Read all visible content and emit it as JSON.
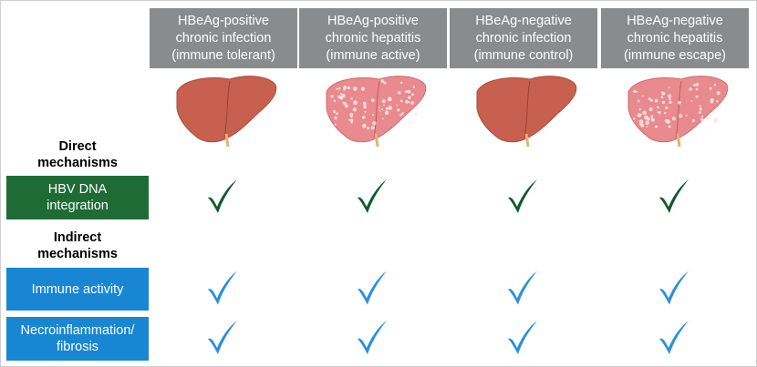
{
  "headers": [
    [
      "HBeAg-positive",
      "chronic infection",
      "(immune tolerant)"
    ],
    [
      "HBeAg-positive",
      "chronic hepatitis",
      "(immune active)"
    ],
    [
      "HBeAg-negative",
      "chronic infection",
      "(immune control)"
    ],
    [
      "HBeAg-negative",
      "chronic hepatitis",
      "(immune escape)"
    ]
  ],
  "sections": [
    {
      "title": [
        "Direct",
        "mechanisms"
      ],
      "rows": [
        {
          "label": [
            "HBV DNA",
            "integration"
          ]
        }
      ]
    },
    {
      "title": [
        "Indirect",
        "mechanisms"
      ],
      "rows": [
        {
          "label": [
            "Immune activity"
          ]
        },
        {
          "label": [
            "Necroinflammation/",
            "fibrosis"
          ]
        }
      ]
    }
  ]
}
